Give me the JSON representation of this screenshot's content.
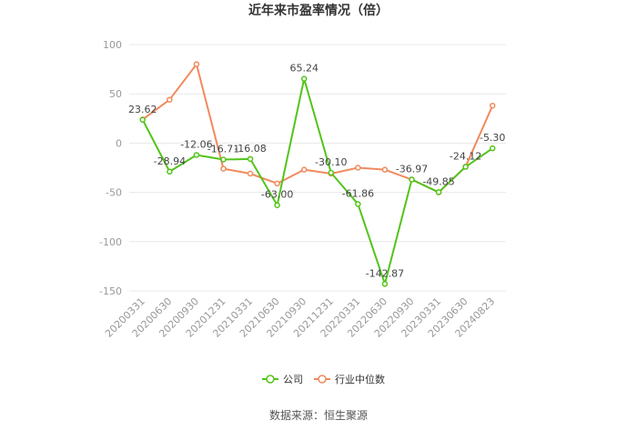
{
  "chart_data": {
    "type": "line",
    "title": "近年来市盈率情况（倍）",
    "categories": [
      "20200331",
      "20200630",
      "20200930",
      "20201231",
      "20210331",
      "20210630",
      "20210930",
      "20211231",
      "20220331",
      "20220630",
      "20220930",
      "20230331",
      "20230630",
      "20240823"
    ],
    "series": [
      {
        "name": "公司",
        "color": "#52c41a",
        "values": [
          23.62,
          -28.94,
          -12.06,
          -16.71,
          -16.08,
          -63.0,
          65.24,
          -30.1,
          -61.86,
          -142.87,
          -36.97,
          -49.85,
          -24.12,
          -5.3
        ],
        "labels": [
          "23.62",
          "-28.94",
          "-12.06",
          "-16.71",
          "-16.08",
          "-63.00",
          "65.24",
          "-30.10",
          "-61.86",
          "-142.87",
          "-36.97",
          "-49.85",
          "-24.12",
          "-5.30"
        ]
      },
      {
        "name": "行业中位数",
        "color": "#f08a5d",
        "values": [
          24,
          44,
          80,
          -26,
          -31,
          -41,
          -27,
          -31,
          -25,
          -27,
          -37,
          -50,
          -24,
          38
        ]
      }
    ],
    "yticks": [
      "100",
      "50",
      "0",
      "-50",
      "-100",
      "-150"
    ],
    "ylim": [
      -150,
      100
    ],
    "grid": true,
    "legend_position": "bottom"
  },
  "source": "数据来源：恒生聚源"
}
